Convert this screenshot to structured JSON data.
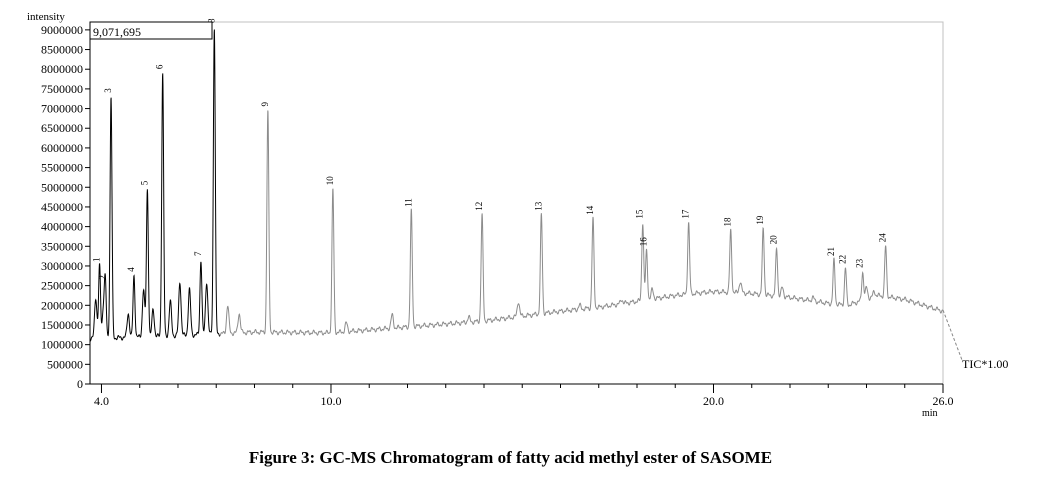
{
  "chart_data": {
    "type": "line",
    "ylabel": "intensity",
    "xlabel": "min",
    "max_intensity_label": "9,071,695",
    "trace_label": "TIC*1.00",
    "xlim": [
      3.7,
      26.0
    ],
    "ylim": [
      0,
      9200000
    ],
    "x_ticks": [
      {
        "value": 4.0,
        "label": "4.0"
      },
      {
        "value": 10.0,
        "label": "10.0"
      },
      {
        "value": 20.0,
        "label": "20.0"
      },
      {
        "value": 26.0,
        "label": "26.0"
      }
    ],
    "x_minor_ticks": [
      5,
      6,
      7,
      8,
      9,
      11,
      12,
      13,
      14,
      15,
      16,
      17,
      18,
      19,
      21,
      22,
      23,
      24,
      25
    ],
    "y_ticks": [
      0,
      500000,
      1000000,
      1500000,
      2000000,
      2500000,
      3000000,
      3500000,
      4000000,
      4500000,
      5000000,
      5500000,
      6000000,
      6500000,
      7000000,
      7500000,
      8000000,
      8500000,
      9000000
    ],
    "peaks": [
      {
        "label": "1",
        "rt": 3.95,
        "intensity": 3000000
      },
      {
        "label": "2",
        "rt": 4.1,
        "intensity": 2550000
      },
      {
        "label": "3",
        "rt": 4.25,
        "intensity": 7300000
      },
      {
        "label": "4",
        "rt": 4.85,
        "intensity": 2750000
      },
      {
        "label": "5",
        "rt": 5.2,
        "intensity": 4950000
      },
      {
        "label": "6",
        "rt": 5.6,
        "intensity": 7900000
      },
      {
        "label": "7",
        "rt": 6.6,
        "intensity": 3150000
      },
      {
        "label": "8",
        "rt": 6.95,
        "intensity": 9071695
      },
      {
        "label": "9",
        "rt": 8.35,
        "intensity": 6950000
      },
      {
        "label": "10",
        "rt": 10.05,
        "intensity": 4950000
      },
      {
        "label": "11",
        "rt": 12.1,
        "intensity": 4400000
      },
      {
        "label": "12",
        "rt": 13.95,
        "intensity": 4300000
      },
      {
        "label": "13",
        "rt": 15.5,
        "intensity": 4300000
      },
      {
        "label": "14",
        "rt": 16.85,
        "intensity": 4200000
      },
      {
        "label": "15",
        "rt": 18.15,
        "intensity": 4100000
      },
      {
        "label": "16",
        "rt": 18.25,
        "intensity": 3400000
      },
      {
        "label": "17",
        "rt": 19.35,
        "intensity": 4100000
      },
      {
        "label": "18",
        "rt": 20.45,
        "intensity": 3900000
      },
      {
        "label": "19",
        "rt": 21.3,
        "intensity": 3950000
      },
      {
        "label": "20",
        "rt": 21.65,
        "intensity": 3450000
      },
      {
        "label": "21",
        "rt": 23.15,
        "intensity": 3150000
      },
      {
        "label": "22",
        "rt": 23.45,
        "intensity": 2950000
      },
      {
        "label": "23",
        "rt": 23.9,
        "intensity": 2850000
      },
      {
        "label": "24",
        "rt": 24.5,
        "intensity": 3500000
      }
    ]
  },
  "caption": "Figure 3: GC-MS Chromatogram of fatty acid methyl ester of SASOME"
}
